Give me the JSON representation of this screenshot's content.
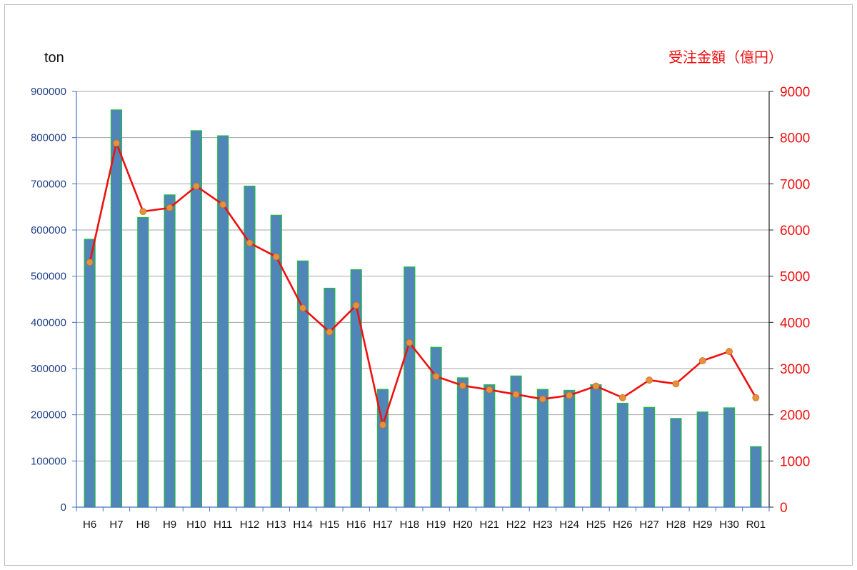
{
  "chart_data": {
    "type": "bar",
    "categories": [
      "H6",
      "H7",
      "H8",
      "H9",
      "H10",
      "H11",
      "H12",
      "H13",
      "H14",
      "H15",
      "H16",
      "H17",
      "H18",
      "H19",
      "H20",
      "H21",
      "H22",
      "H23",
      "H24",
      "H25",
      "H26",
      "H27",
      "H28",
      "H29",
      "H30",
      "R01"
    ],
    "series": [
      {
        "type": "bar",
        "axis": "left",
        "values": [
          580000,
          860000,
          627000,
          676000,
          815000,
          804000,
          695000,
          632000,
          533000,
          474000,
          514000,
          255000,
          520000,
          346000,
          280000,
          265000,
          284000,
          255000,
          253000,
          265000,
          225000,
          216000,
          192000,
          206000,
          215000,
          131000
        ],
        "color": "#4f86b7",
        "border_color": "#22bb44"
      },
      {
        "type": "line",
        "axis": "right",
        "values": [
          5300,
          7880,
          6400,
          6480,
          6950,
          6550,
          5720,
          5420,
          4310,
          3790,
          4370,
          1780,
          3560,
          2830,
          2630,
          2540,
          2440,
          2340,
          2420,
          2620,
          2370,
          2750,
          2670,
          3170,
          3370,
          2370
        ],
        "color": "#ee1111",
        "marker_color": "#e8913a"
      }
    ],
    "y_left": {
      "unit_label": "ton",
      "min": 0,
      "max": 900000,
      "ticks": [
        "0",
        "100000",
        "200000",
        "300000",
        "400000",
        "500000",
        "600000",
        "700000",
        "800000",
        "900000"
      ]
    },
    "y_right": {
      "unit_label": "受注金額（億円）",
      "min": 0,
      "max": 9000,
      "ticks": [
        "0",
        "1000",
        "2000",
        "3000",
        "4000",
        "5000",
        "6000",
        "7000",
        "8000",
        "9000"
      ]
    },
    "grid": true,
    "legend": "none",
    "colors": {
      "grid": "#a6a6a6",
      "left_axis": "#4472c4",
      "right_axis": "#222222",
      "left_text": "#1f3f87",
      "right_text": "#ee1111"
    }
  }
}
